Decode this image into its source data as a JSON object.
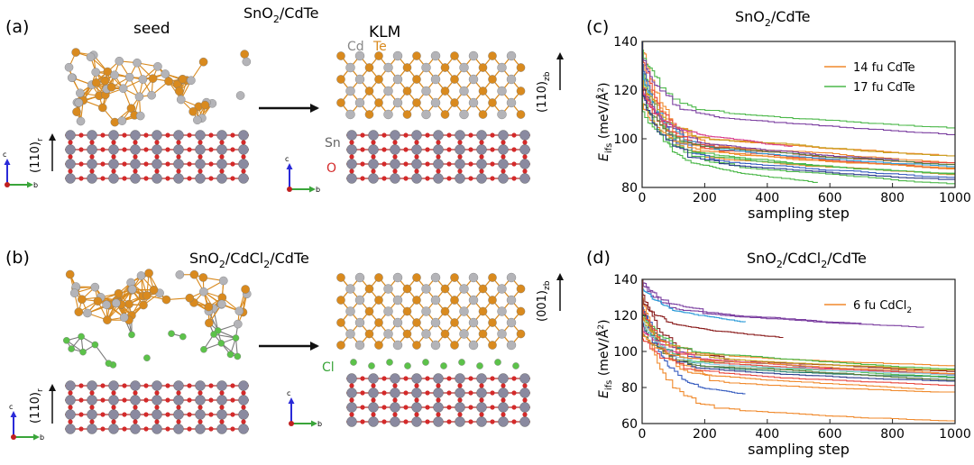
{
  "panels": {
    "a": {
      "label": "(a)",
      "title": "SnO",
      "title_sub": "2",
      "title_rest": "/CdTe",
      "left_label": "seed",
      "right_label": "KLM",
      "left_dir": "(110)",
      "left_dir_sub": "r",
      "right_dir": "(110)",
      "right_dir_sub": "zb",
      "atoms": {
        "cd": "Cd",
        "te": "Te",
        "sn": "Sn",
        "o": "O"
      }
    },
    "b": {
      "label": "(b)",
      "title": "SnO",
      "title_sub": "2",
      "title_mid": "/CdCl",
      "title_sub2": "2",
      "title_rest": "/CdTe",
      "left_dir": "(110)",
      "left_dir_sub": "r",
      "right_dir": "(001)",
      "right_dir_sub": "zb",
      "atoms": {
        "cl": "Cl"
      }
    },
    "c": {
      "label": "(c)",
      "title": "SnO",
      "title_sub": "2",
      "title_rest": "/CdTe"
    },
    "d": {
      "label": "(d)",
      "title": "SnO",
      "title_sub": "2",
      "title_mid": "/CdCl",
      "title_sub2": "2",
      "title_rest": "/CdTe"
    }
  },
  "axes_keys": {
    "c": "c",
    "b": "b"
  },
  "colors": {
    "cd": "#b4b4b8",
    "te": "#d98a1e",
    "sn": "#8a8aa0",
    "o": "#d42a2a",
    "cl": "#5cc24a",
    "bond_te": "#d98a1e",
    "bond_sn": "#b03030"
  },
  "chart_data": [
    {
      "type": "line",
      "title": "SnO2/CdTe",
      "xlabel": "sampling step",
      "ylabel": "E_ifs (meV/Å²)",
      "ylabel_main": "E",
      "ylabel_sub": "ifs",
      "ylabel_rest": " (meV/Å",
      "ylabel_sup": "2",
      "ylabel_end": ")",
      "xlim": [
        0,
        1000
      ],
      "ylim": [
        80,
        140
      ],
      "xticks": [
        0,
        200,
        400,
        600,
        800,
        1000
      ],
      "yticks": [
        80,
        100,
        120,
        140
      ],
      "legend": [
        {
          "name": "14 fu CdTe",
          "color": "#f0892b"
        },
        {
          "name": "17 fu CdTe",
          "color": "#4cb84a"
        }
      ],
      "legend_position": "top-right",
      "series": [
        {
          "color": "#f0892b",
          "start": 138,
          "end": 97,
          "len": 1000
        },
        {
          "color": "#f0892b",
          "start": 132,
          "end": 94,
          "len": 1000
        },
        {
          "color": "#f0892b",
          "start": 128,
          "end": 99,
          "len": 1000
        },
        {
          "color": "#f0892b",
          "start": 125,
          "end": 92,
          "len": 1000
        },
        {
          "color": "#e8463c",
          "start": 135,
          "end": 95,
          "len": 1000
        },
        {
          "color": "#4cb84a",
          "start": 136,
          "end": 111,
          "len": 1000
        },
        {
          "color": "#4cb84a",
          "start": 130,
          "end": 89,
          "len": 1000
        },
        {
          "color": "#4cb84a",
          "start": 126,
          "end": 92,
          "len": 1000
        },
        {
          "color": "#4cb84a",
          "start": 120,
          "end": 88,
          "len": 560
        },
        {
          "color": "#7b3fa0",
          "start": 134,
          "end": 109,
          "len": 1000
        },
        {
          "color": "#7b3fa0",
          "start": 122,
          "end": 98,
          "len": 820
        },
        {
          "color": "#3a5fc0",
          "start": 131,
          "end": 91,
          "len": 1000
        },
        {
          "color": "#2a9ad8",
          "start": 127,
          "end": 96,
          "len": 1000
        },
        {
          "color": "#c8a020",
          "start": 124,
          "end": 100,
          "len": 1000
        },
        {
          "color": "#e8463c",
          "start": 121,
          "end": 96,
          "len": 1000
        },
        {
          "color": "#d83c8c",
          "start": 119,
          "end": 102,
          "len": 480
        },
        {
          "color": "#5a7a3a",
          "start": 116,
          "end": 97,
          "len": 1000
        },
        {
          "color": "#f0892b",
          "start": 114,
          "end": 95,
          "len": 1000
        },
        {
          "color": "#4cb84a",
          "start": 112,
          "end": 94,
          "len": 1000
        },
        {
          "color": "#2a3a8a",
          "start": 118,
          "end": 90,
          "len": 1000
        }
      ]
    },
    {
      "type": "line",
      "title": "SnO2/CdCl2/CdTe",
      "xlabel": "sampling step",
      "ylabel": "E_ifs (meV/Å²)",
      "ylabel_main": "E",
      "ylabel_sub": "ifs",
      "ylabel_rest": " (meV/Å",
      "ylabel_sup": "2",
      "ylabel_end": ")",
      "xlim": [
        0,
        1000
      ],
      "ylim": [
        60,
        140
      ],
      "xticks": [
        0,
        200,
        400,
        600,
        800,
        1000
      ],
      "yticks": [
        60,
        80,
        100,
        120,
        140
      ],
      "legend": [
        {
          "name": "6 fu CdCl",
          "name_sub": "2",
          "color": "#f0892b"
        }
      ],
      "legend_position": "top-right",
      "series": [
        {
          "color": "#f0892b",
          "start": 120,
          "end": 68,
          "len": 1000
        },
        {
          "color": "#f0892b",
          "start": 130,
          "end": 83,
          "len": 1000
        },
        {
          "color": "#f0892b",
          "start": 118,
          "end": 98,
          "len": 1000
        },
        {
          "color": "#f0892b",
          "start": 125,
          "end": 86,
          "len": 900
        },
        {
          "color": "#7b3fa0",
          "start": 140,
          "end": 122,
          "len": 700
        },
        {
          "color": "#7b3fa0",
          "start": 138,
          "end": 121,
          "len": 900
        },
        {
          "color": "#2a9ad8",
          "start": 136,
          "end": 120,
          "len": 330
        },
        {
          "color": "#8a1c1c",
          "start": 132,
          "end": 96,
          "len": 1000
        },
        {
          "color": "#8a1c1c",
          "start": 128,
          "end": 113,
          "len": 450
        },
        {
          "color": "#3a5fc0",
          "start": 126,
          "end": 78,
          "len": 330
        },
        {
          "color": "#3a5fc0",
          "start": 124,
          "end": 95,
          "len": 1000
        },
        {
          "color": "#1a7a6a",
          "start": 122,
          "end": 91,
          "len": 1000
        },
        {
          "color": "#4cb84a",
          "start": 121,
          "end": 99,
          "len": 1000
        },
        {
          "color": "#4cb84a",
          "start": 117,
          "end": 93,
          "len": 1000
        },
        {
          "color": "#c8a020",
          "start": 119,
          "end": 97,
          "len": 1000
        },
        {
          "color": "#e8463c",
          "start": 123,
          "end": 94,
          "len": 1000
        },
        {
          "color": "#2a3a8a",
          "start": 115,
          "end": 90,
          "len": 1000
        },
        {
          "color": "#d83c8c",
          "start": 113,
          "end": 96,
          "len": 600
        },
        {
          "color": "#5a7a3a",
          "start": 111,
          "end": 92,
          "len": 1000
        },
        {
          "color": "#8fd0e8",
          "start": 116,
          "end": 93,
          "len": 1000
        },
        {
          "color": "#f0892b",
          "start": 110,
          "end": 95,
          "len": 1000
        },
        {
          "color": "#e8463c",
          "start": 108,
          "end": 89,
          "len": 1000
        }
      ]
    }
  ]
}
